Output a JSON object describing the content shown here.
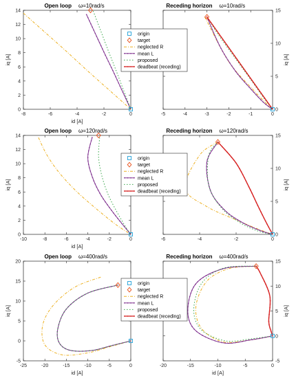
{
  "figure": {
    "colors": {
      "origin": "#1f9fd8",
      "target": "#e8501a",
      "neglected": "#edb020",
      "meanL": "#7e2f8e",
      "proposed": "#3aa64a",
      "deadbeat": "#d62020"
    }
  },
  "chart_data": [
    {
      "type": "line",
      "title": "Open loop",
      "omega_label": "ω=10rad/s",
      "xlabel": "id [A]",
      "ylabel": "iq [A]",
      "xlim": [
        -8,
        0
      ],
      "ylim": [
        0,
        14
      ],
      "xticks": [
        -8,
        -6,
        -4,
        -2,
        0
      ],
      "yticks": [
        0,
        2,
        4,
        6,
        8,
        10,
        12,
        14
      ],
      "series": [
        {
          "name": "neglected R",
          "key": "neglected",
          "x": [
            -8.0,
            -6.4,
            -4.8,
            -3.2,
            -1.6,
            0
          ],
          "y": [
            13.6,
            10.9,
            8.2,
            5.4,
            2.7,
            0
          ]
        },
        {
          "name": "mean L",
          "key": "meanL",
          "x": [
            -3.3,
            -2.64,
            -1.98,
            -1.32,
            -0.66,
            0
          ],
          "y": [
            13.4,
            10.7,
            8.0,
            5.4,
            2.7,
            0
          ]
        },
        {
          "name": "proposed",
          "key": "proposed",
          "x": [
            -2.8,
            -2.24,
            -1.68,
            -1.12,
            -0.56,
            0
          ],
          "y": [
            13.9,
            11.1,
            8.3,
            5.6,
            2.8,
            0
          ]
        }
      ],
      "origin": [
        0,
        0
      ],
      "target": [
        -3.0,
        14.0
      ]
    },
    {
      "type": "line",
      "title": "Receding horizon",
      "omega_label": "ω=10rad/s",
      "xlabel": "",
      "ylabel": "",
      "xlim": [
        -5,
        0
      ],
      "ylim": [
        0,
        15
      ],
      "xticks": [
        -5,
        -4,
        -3,
        -2,
        -1,
        0
      ],
      "yticks": [
        0,
        5,
        10,
        15
      ],
      "series": [
        {
          "name": "neglected R",
          "key": "neglected",
          "x": [
            -3.1,
            -2.0,
            -0.9,
            -0.5,
            -0.2,
            0
          ],
          "y": [
            14.0,
            7.2,
            3.0,
            1.6,
            0.6,
            0
          ]
        },
        {
          "name": "mean L",
          "key": "meanL",
          "x": [
            -3.0,
            -2.4,
            -1.7,
            -1.0,
            -0.4,
            0
          ],
          "y": [
            14.0,
            9.5,
            5.8,
            3.1,
            1.0,
            0
          ]
        },
        {
          "name": "proposed",
          "key": "proposed",
          "x": [
            -3.0,
            -2.5,
            -1.7,
            -1.0,
            -0.4,
            0
          ],
          "y": [
            14.0,
            11.4,
            7.7,
            4.5,
            1.7,
            0
          ]
        },
        {
          "name": "deadbeat (receding)",
          "key": "deadbeat",
          "x": [
            -3.0,
            -2.4,
            -1.8,
            -1.2,
            -0.6,
            0
          ],
          "y": [
            14.0,
            11.2,
            8.4,
            5.6,
            2.8,
            0
          ]
        }
      ],
      "origin": [
        0,
        0
      ],
      "target": [
        -3.0,
        14.0
      ]
    },
    {
      "type": "line",
      "title": "Open loop",
      "omega_label": "ω=120rad/s",
      "xlabel": "id [A]",
      "ylabel": "iq [A]",
      "xlim": [
        -10,
        0
      ],
      "ylim": [
        0,
        14
      ],
      "xticks": [
        -10,
        -8,
        -6,
        -4,
        -2,
        0
      ],
      "yticks": [
        0,
        2,
        4,
        6,
        8,
        10,
        12,
        14
      ],
      "series": [
        {
          "name": "neglected R",
          "key": "neglected",
          "x": [
            -8.6,
            -7.8,
            -6.6,
            -5.0,
            -3.2,
            -1.4,
            0
          ],
          "y": [
            13.7,
            11.2,
            8.6,
            6.0,
            3.6,
            1.4,
            0
          ]
        },
        {
          "name": "mean L",
          "key": "meanL",
          "x": [
            -3.6,
            -4.0,
            -3.6,
            -2.8,
            -1.7,
            -0.6,
            0
          ],
          "y": [
            13.7,
            10.9,
            8.2,
            5.6,
            3.2,
            1.1,
            0
          ]
        },
        {
          "name": "proposed",
          "key": "proposed",
          "x": [
            -2.9,
            -3.0,
            -2.7,
            -2.1,
            -1.3,
            -0.5,
            0
          ],
          "y": [
            13.7,
            11.0,
            8.3,
            5.6,
            3.2,
            1.1,
            0
          ]
        }
      ],
      "origin": [
        0,
        0
      ],
      "target": [
        -3.0,
        14.0
      ]
    },
    {
      "type": "line",
      "title": "Receding horizon",
      "omega_label": "ω=120rad/s",
      "xlabel": "",
      "ylabel": "",
      "xlim": [
        -6,
        0
      ],
      "ylim": [
        0,
        15
      ],
      "xticks": [
        -6,
        -4,
        -2,
        0
      ],
      "yticks": [
        0,
        5,
        10,
        15
      ],
      "series": [
        {
          "name": "neglected R",
          "key": "neglected",
          "x": [
            -3.0,
            -4.0,
            -4.8,
            -3.6,
            -2.0,
            -0.8,
            0
          ],
          "y": [
            14.0,
            12.0,
            7.0,
            4.2,
            2.2,
            0.8,
            0
          ]
        },
        {
          "name": "mean L",
          "key": "meanL",
          "x": [
            -3.0,
            -3.6,
            -3.4,
            -2.6,
            -1.6,
            -0.6,
            0
          ],
          "y": [
            14.0,
            11.0,
            6.6,
            3.6,
            1.7,
            0.5,
            0
          ]
        },
        {
          "name": "proposed",
          "key": "proposed",
          "x": [
            -3.0,
            -3.5,
            -3.5,
            -2.8,
            -1.8,
            -0.8,
            0
          ],
          "y": [
            14.0,
            12.0,
            7.4,
            4.0,
            1.8,
            0.5,
            0
          ]
        },
        {
          "name": "deadbeat (receding)",
          "key": "deadbeat",
          "x": [
            -3.0,
            -2.0,
            -1.3,
            -0.8,
            -0.35,
            0
          ],
          "y": [
            14.0,
            10.8,
            7.2,
            4.3,
            1.8,
            0
          ]
        }
      ],
      "origin": [
        0,
        0
      ],
      "target": [
        -3.0,
        14.0
      ]
    },
    {
      "type": "line",
      "title": "Open loop",
      "omega_label": "ω=400rad/s",
      "xlabel": "id [A]",
      "ylabel": "iq [A]",
      "xlim": [
        -25,
        0
      ],
      "ylim": [
        -5,
        20
      ],
      "xticks": [
        -25,
        -20,
        -15,
        -10,
        -5,
        0
      ],
      "yticks": [
        -5,
        0,
        5,
        10,
        15,
        20
      ],
      "series": [
        {
          "name": "neglected R",
          "key": "neglected",
          "x": [
            -7,
            -13,
            -18,
            -20.5,
            -20,
            -16,
            -10,
            -5,
            0
          ],
          "y": [
            16,
            13.5,
            9,
            4,
            -1,
            -3.5,
            -3,
            -1.5,
            0
          ]
        },
        {
          "name": "mean L",
          "key": "meanL",
          "x": [
            -3,
            -10,
            -15,
            -17,
            -16.6,
            -14,
            -9,
            -4.5,
            0
          ],
          "y": [
            14,
            12,
            8,
            3,
            -0.6,
            -2.4,
            -2.4,
            -1.2,
            0
          ]
        },
        {
          "name": "proposed",
          "key": "proposed",
          "x": [
            -3,
            -10,
            -15,
            -17,
            -16.6,
            -14,
            -9,
            -4.5,
            0
          ],
          "y": [
            14,
            12,
            8,
            3,
            -0.6,
            -2.4,
            -2.4,
            -1.2,
            0
          ]
        }
      ],
      "origin": [
        0,
        0
      ],
      "target": [
        -3.0,
        14.0
      ]
    },
    {
      "type": "line",
      "title": "Receding horizon",
      "omega_label": "ω=400rad/s",
      "xlabel": "id [A]",
      "ylabel": "",
      "xlim": [
        -20,
        0
      ],
      "ylim": [
        -5,
        15
      ],
      "xticks": [
        -20,
        -15,
        -10,
        -5,
        0
      ],
      "yticks": [
        -5,
        0,
        5,
        10,
        15
      ],
      "series": [
        {
          "name": "neglected R",
          "key": "neglected",
          "x": [
            -3,
            -8,
            -12,
            -14,
            -13,
            -9,
            -4,
            0
          ],
          "y": [
            14,
            13.5,
            11,
            6,
            1.5,
            -1.2,
            -0.8,
            0
          ]
        },
        {
          "name": "mean L",
          "key": "meanL",
          "x": [
            -3,
            -9,
            -14,
            -15.5,
            -14,
            -9,
            -4,
            0
          ],
          "y": [
            14,
            13.5,
            10.5,
            5,
            1,
            -1.4,
            -0.8,
            0
          ]
        },
        {
          "name": "proposed",
          "key": "proposed",
          "x": [
            -3,
            -9,
            -13,
            -14.4,
            -13,
            -8.6,
            -4,
            0
          ],
          "y": [
            14,
            13.6,
            10.5,
            5.2,
            1.2,
            -1.0,
            -0.6,
            0
          ]
        },
        {
          "name": "deadbeat (receding)",
          "key": "deadbeat",
          "x": [
            -3,
            -2.2,
            -0.5,
            -0.7,
            -0.3,
            0
          ],
          "y": [
            14,
            12.5,
            8,
            3,
            1.0,
            0
          ]
        }
      ],
      "origin": [
        0,
        0
      ],
      "target": [
        -3.0,
        14.0
      ]
    }
  ],
  "legend": [
    {
      "key": "origin",
      "label": "origin",
      "marker": "square"
    },
    {
      "key": "target",
      "label": "target",
      "marker": "diamond"
    },
    {
      "key": "neglected",
      "label": "neglected R",
      "marker": "line"
    },
    {
      "key": "meanL",
      "label": "mean L",
      "marker": "line"
    },
    {
      "key": "proposed",
      "label": "proposed",
      "marker": "line"
    },
    {
      "key": "deadbeat",
      "label": "deadbeat (receding)",
      "marker": "line"
    }
  ]
}
